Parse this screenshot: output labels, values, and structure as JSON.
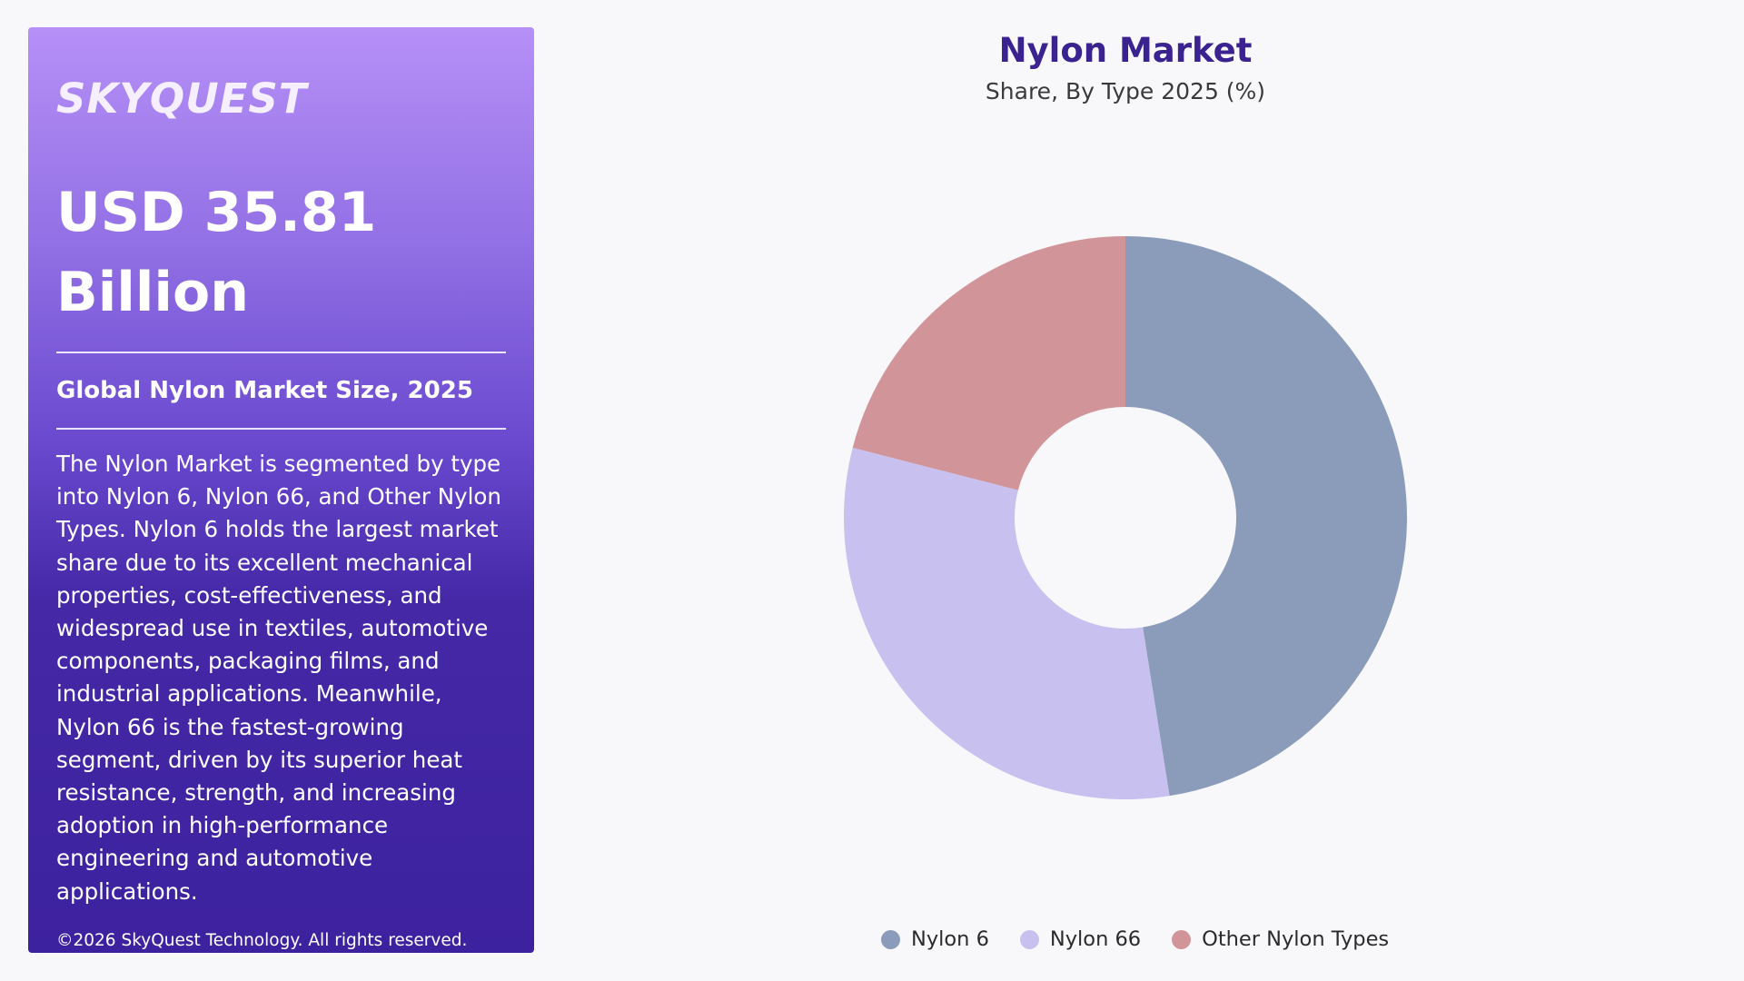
{
  "panel": {
    "logo": "SKYQUEST",
    "headline_line1": "USD 35.81",
    "headline_line2": "Billion",
    "subhead": "Global Nylon Market Size, 2025",
    "description": "The Nylon Market is segmented by type into Nylon 6, Nylon 66, and Other Nylon Types. Nylon 6 holds the largest market share due to its excellent mechanical properties, cost-effectiveness, and widespread use in textiles, automotive components, packaging films, and industrial applications. Meanwhile, Nylon 66 is the fastest-growing segment, driven by its superior heat resistance, strength, and increasing adoption in high-performance engineering and automotive applications.",
    "copyright": "©2026 SkyQuest Technology. All rights reserved."
  },
  "chart_data": {
    "type": "pie",
    "title": "Nylon Market",
    "subtitle": "Share, By Type 2025 (%)",
    "categories": [
      "Nylon 6",
      "Nylon 66",
      "Other Nylon Types"
    ],
    "values": [
      47.5,
      31.5,
      21
    ],
    "colors": [
      "#8a9cba",
      "#c8c1f0",
      "#d09499"
    ],
    "donut": true,
    "legend_position": "bottom"
  }
}
